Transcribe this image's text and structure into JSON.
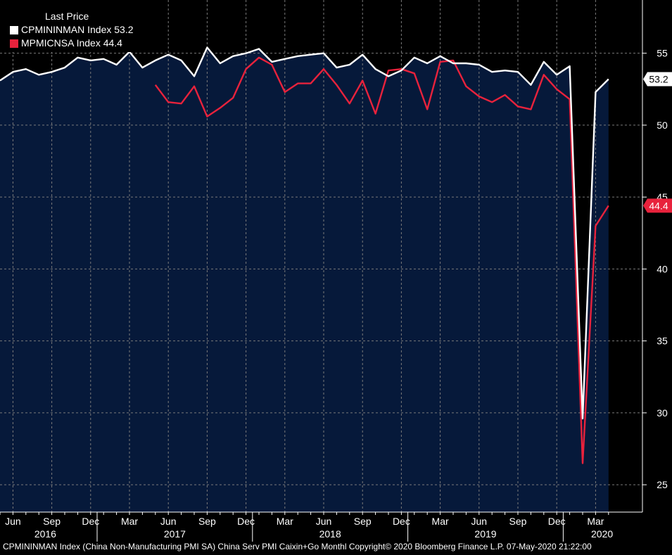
{
  "legend": {
    "title": "Last Price",
    "items": [
      {
        "label": "CPMININMAN Index 53.2",
        "color": "#ffffff"
      },
      {
        "label": "MPMICNSA Index 44.4",
        "color": "#e8223c"
      }
    ]
  },
  "footer": "CPMININMAN Index (China Non-Manufacturing PMI SA) China Serv PMI Caixin+Go  Monthl Copyright© 2020 Bloomberg Finance L.P. 07-May-2020 21:22:00",
  "colors": {
    "background": "#000000",
    "plot_fill": "#06193a",
    "grid": "#7a7a7a",
    "series1": "#ffffff",
    "series2": "#e8223c"
  },
  "chart_data": {
    "type": "line",
    "x": [
      "2016-05",
      "2016-06",
      "2016-07",
      "2016-08",
      "2016-09",
      "2016-10",
      "2016-11",
      "2016-12",
      "2017-01",
      "2017-02",
      "2017-03",
      "2017-04",
      "2017-05",
      "2017-06",
      "2017-07",
      "2017-08",
      "2017-09",
      "2017-10",
      "2017-11",
      "2017-12",
      "2018-01",
      "2018-02",
      "2018-03",
      "2018-04",
      "2018-05",
      "2018-06",
      "2018-07",
      "2018-08",
      "2018-09",
      "2018-10",
      "2018-11",
      "2018-12",
      "2019-01",
      "2019-02",
      "2019-03",
      "2019-04",
      "2019-05",
      "2019-06",
      "2019-07",
      "2019-08",
      "2019-09",
      "2019-10",
      "2019-11",
      "2019-12",
      "2020-01",
      "2020-02",
      "2020-03",
      "2020-04"
    ],
    "series": [
      {
        "name": "CPMININMAN Index",
        "color": "#ffffff",
        "fill": "#06193a",
        "values": [
          53.1,
          53.7,
          53.9,
          53.5,
          53.7,
          54.0,
          54.7,
          54.5,
          54.6,
          54.2,
          55.1,
          54.0,
          54.5,
          54.9,
          54.5,
          53.4,
          55.4,
          54.3,
          54.8,
          55.0,
          55.3,
          54.4,
          54.6,
          54.8,
          54.9,
          55.0,
          54.0,
          54.2,
          54.9,
          53.9,
          53.4,
          53.8,
          54.7,
          54.3,
          54.8,
          54.3,
          54.3,
          54.2,
          53.7,
          53.8,
          53.7,
          52.8,
          54.4,
          53.5,
          54.1,
          29.6,
          52.3,
          53.2
        ]
      },
      {
        "name": "MPMICNSA Index",
        "color": "#e8223c",
        "values": [
          null,
          null,
          null,
          null,
          null,
          null,
          null,
          null,
          null,
          null,
          null,
          null,
          52.8,
          51.6,
          51.5,
          52.7,
          50.6,
          51.2,
          51.9,
          53.9,
          54.7,
          54.2,
          52.3,
          52.9,
          52.9,
          53.9,
          52.8,
          51.5,
          53.1,
          50.8,
          53.8,
          53.9,
          53.6,
          51.1,
          54.4,
          54.5,
          52.7,
          52.0,
          51.6,
          52.1,
          51.3,
          51.1,
          53.5,
          52.5,
          51.8,
          26.5,
          43.0,
          44.4
        ]
      }
    ],
    "x_ticks": [
      "Jun",
      "Sep",
      "Dec",
      "Mar",
      "Jun",
      "Sep",
      "Dec",
      "Mar",
      "Jun",
      "Sep",
      "Dec",
      "Mar",
      "Jun",
      "Sep",
      "Dec",
      "Mar"
    ],
    "years": [
      "2016",
      "2017",
      "2018",
      "2019",
      "2020"
    ],
    "y_ticks": [
      "55",
      "50",
      "45",
      "40",
      "35",
      "30",
      "25"
    ],
    "ylim": [
      23.1,
      58.7
    ],
    "last_values": [
      "53.2",
      "44.4"
    ],
    "grid": true,
    "legend_position": "top-left"
  }
}
